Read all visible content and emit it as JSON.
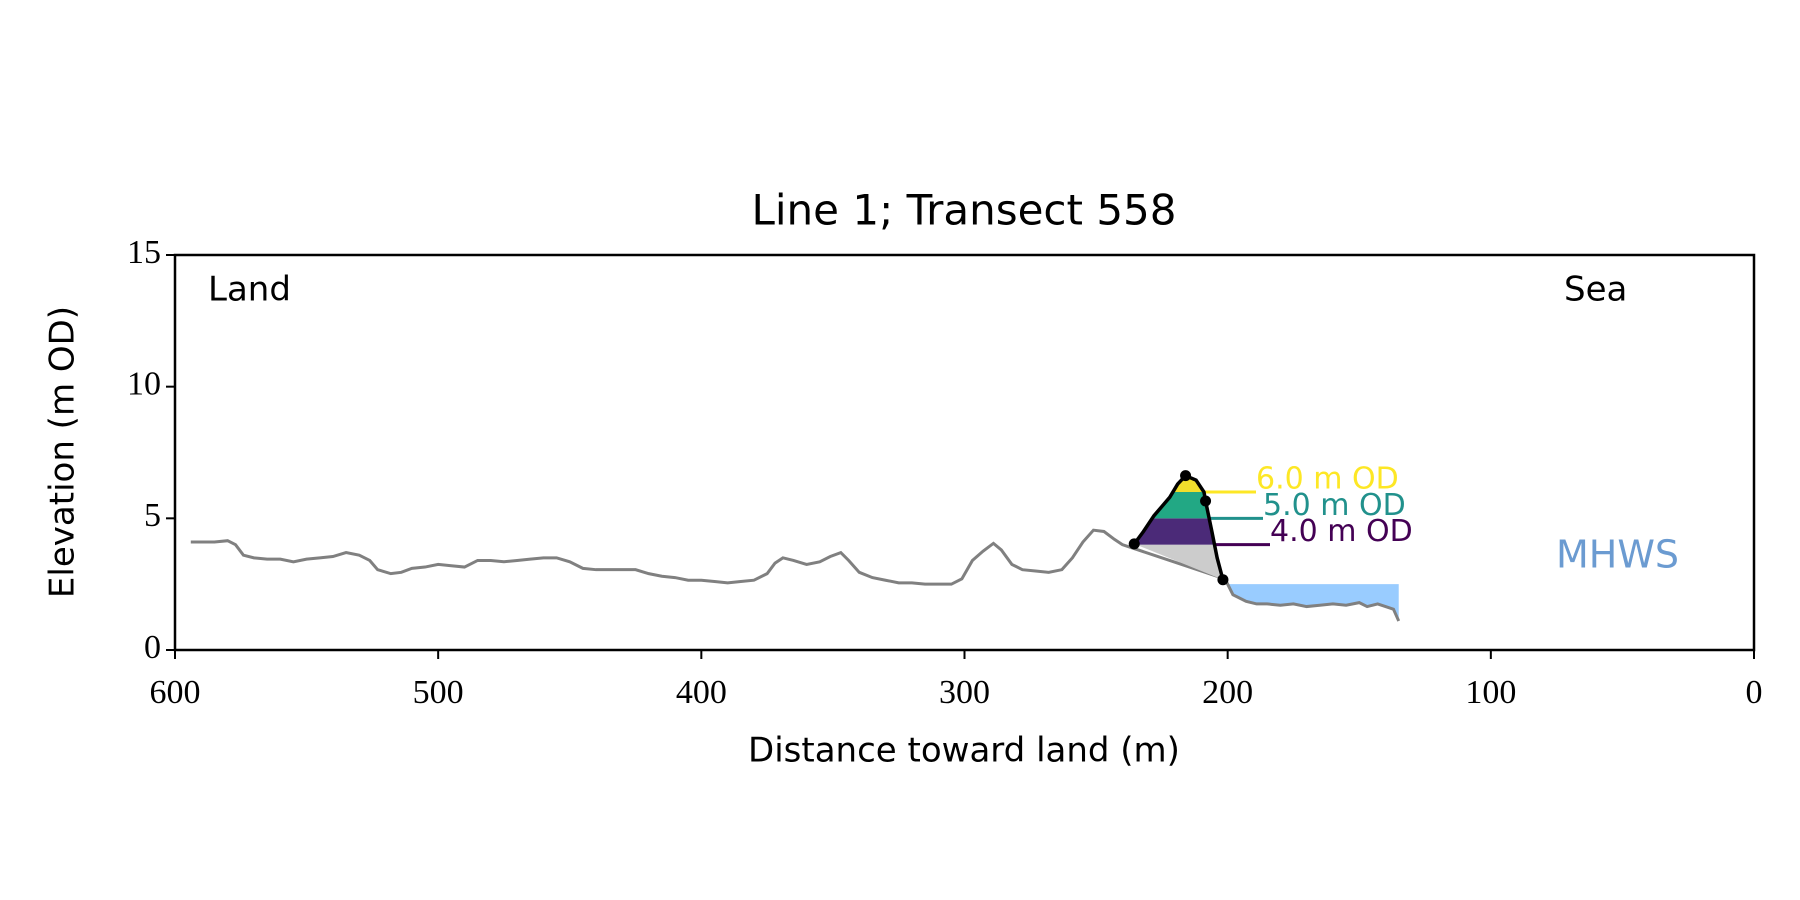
{
  "chart_data": {
    "type": "line",
    "title": "Line 1; Transect 558",
    "xlabel": "Distance toward land (m)",
    "ylabel": "Elevation (m OD)",
    "xlim": [
      600,
      0
    ],
    "ylim": [
      0,
      15
    ],
    "xticks": [
      600,
      500,
      400,
      300,
      200,
      100,
      0
    ],
    "yticks": [
      0,
      5,
      10,
      15
    ],
    "annotations": [
      "Land",
      "Sea"
    ],
    "profile": {
      "color": "#808080",
      "x": [
        594,
        585,
        580,
        577,
        574,
        570,
        565,
        560,
        555,
        550,
        545,
        540,
        535,
        530,
        526,
        523,
        518,
        514,
        510,
        505,
        500,
        495,
        490,
        485,
        480,
        475,
        470,
        465,
        460,
        455,
        450,
        445,
        440,
        435,
        430,
        425,
        420,
        415,
        410,
        405,
        400,
        395,
        390,
        385,
        380,
        375,
        372,
        369,
        365,
        360,
        355,
        351,
        347,
        344,
        340,
        335,
        330,
        325,
        320,
        315,
        310,
        305,
        301,
        297,
        293,
        289,
        286,
        282,
        278,
        273,
        268,
        263,
        259,
        255,
        251,
        247,
        243,
        240,
        201,
        198,
        193,
        189,
        185,
        180,
        175,
        170,
        165,
        160,
        155,
        150,
        147,
        143,
        140,
        137,
        135
      ],
      "y": [
        4.1,
        4.1,
        4.15,
        4.0,
        3.6,
        3.5,
        3.45,
        3.45,
        3.35,
        3.45,
        3.5,
        3.55,
        3.7,
        3.6,
        3.4,
        3.05,
        2.9,
        2.95,
        3.1,
        3.15,
        3.25,
        3.2,
        3.15,
        3.4,
        3.4,
        3.35,
        3.4,
        3.45,
        3.5,
        3.5,
        3.35,
        3.1,
        3.05,
        3.05,
        3.05,
        3.05,
        2.9,
        2.8,
        2.75,
        2.65,
        2.65,
        2.6,
        2.55,
        2.6,
        2.65,
        2.9,
        3.3,
        3.5,
        3.4,
        3.25,
        3.35,
        3.55,
        3.7,
        3.4,
        2.95,
        2.75,
        2.65,
        2.55,
        2.55,
        2.5,
        2.5,
        2.5,
        2.7,
        3.4,
        3.75,
        4.05,
        3.8,
        3.25,
        3.05,
        3.0,
        2.95,
        3.05,
        3.5,
        4.1,
        4.55,
        4.5,
        4.2,
        4.0,
        2.7,
        2.1,
        1.85,
        1.75,
        1.75,
        1.7,
        1.75,
        1.65,
        1.7,
        1.75,
        1.7,
        1.8,
        1.65,
        1.75,
        1.65,
        1.55,
        1.1
      ]
    },
    "dune": {
      "color": "#000000",
      "base_fill": "#cccccc",
      "x": [
        235.5,
        232,
        228,
        225,
        222,
        219,
        216,
        212,
        209,
        208.4,
        206,
        204,
        201.8
      ],
      "y": [
        4.03,
        4.5,
        5.1,
        5.45,
        5.8,
        6.3,
        6.62,
        6.45,
        6.0,
        5.66,
        4.5,
        3.5,
        2.67
      ]
    },
    "dune_points": {
      "x": [
        235.5,
        216,
        208.4,
        201.8
      ],
      "y": [
        4.03,
        6.62,
        5.66,
        2.67
      ]
    },
    "levels": [
      {
        "label": "4.0 m OD",
        "value": 4,
        "color": "#440154",
        "fill_color": "#4b2a78"
      },
      {
        "label": "5.0 m OD",
        "value": 5,
        "color": "#21918c",
        "fill_color": "#22a884"
      },
      {
        "label": "6.0 m OD",
        "value": 6,
        "color": "#fde725",
        "fill_color": "#f0de2c"
      }
    ],
    "mhws": {
      "label": "MHWS",
      "value": 2.5,
      "color": "#99ccff",
      "text_color": "#6b9bd1"
    }
  }
}
